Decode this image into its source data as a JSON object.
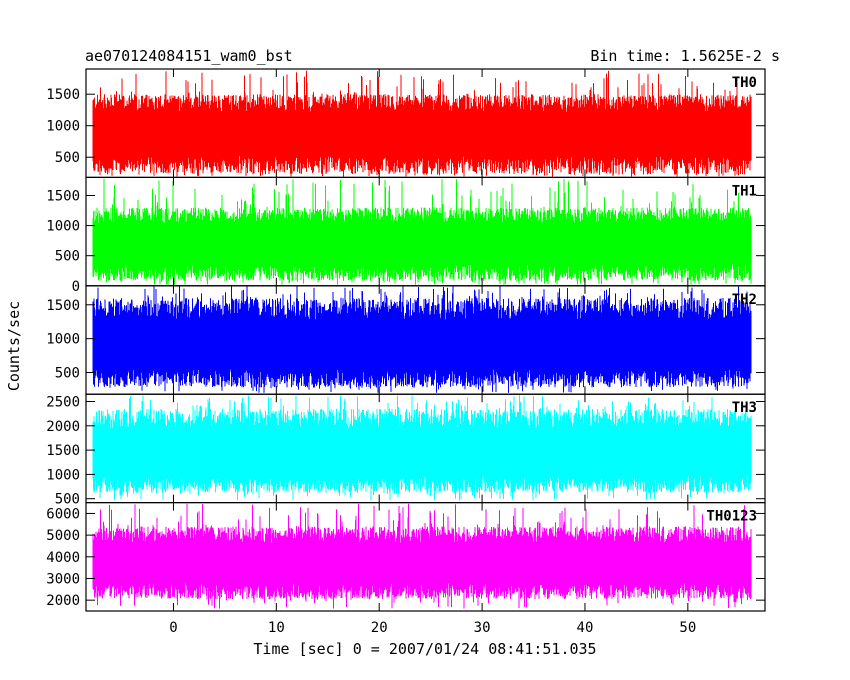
{
  "chart_data": {
    "type": "line",
    "title": "ae070124084151_wam0_bst",
    "subtitle": "Bin time: 1.5625E-2 s",
    "xlabel": "Time [sec] 0 = 2007/01/24 08:41:51.035",
    "ylabel": "Counts/sec",
    "xlim": [
      -8.5,
      57.5
    ],
    "x_range": [
      -7.9,
      56.2
    ],
    "x_ticks": [
      0,
      10,
      20,
      30,
      40,
      50
    ],
    "grid": false,
    "panels": [
      {
        "name": "TH0",
        "color": "#ff0000",
        "ylim": [
          180,
          1900
        ],
        "y_ticks": [
          500,
          1000,
          1500
        ],
        "baseline": 880,
        "low": 230,
        "high": 1500,
        "peak": 1880
      },
      {
        "name": "TH1",
        "color": "#00ff00",
        "ylim": [
          0,
          1800
        ],
        "y_ticks": [
          0,
          500,
          1000,
          1500
        ],
        "baseline": 700,
        "low": 80,
        "high": 1300,
        "peak": 1780
      },
      {
        "name": "TH2",
        "color": "#0000ff",
        "ylim": [
          180,
          1780
        ],
        "y_ticks": [
          500,
          1000,
          1500
        ],
        "baseline": 880,
        "low": 280,
        "high": 1600,
        "peak": 1780
      },
      {
        "name": "TH3",
        "color": "#00ffff",
        "ylim": [
          420,
          2650
        ],
        "y_ticks": [
          500,
          1000,
          1500,
          2000,
          2500
        ],
        "baseline": 1400,
        "low": 620,
        "high": 2350,
        "peak": 2630
      },
      {
        "name": "TH0123",
        "color": "#ff00ff",
        "ylim": [
          1500,
          6500
        ],
        "y_ticks": [
          2000,
          3000,
          4000,
          5000,
          6000
        ],
        "baseline": 3700,
        "low": 2050,
        "high": 5400,
        "peak": 6450
      }
    ]
  }
}
